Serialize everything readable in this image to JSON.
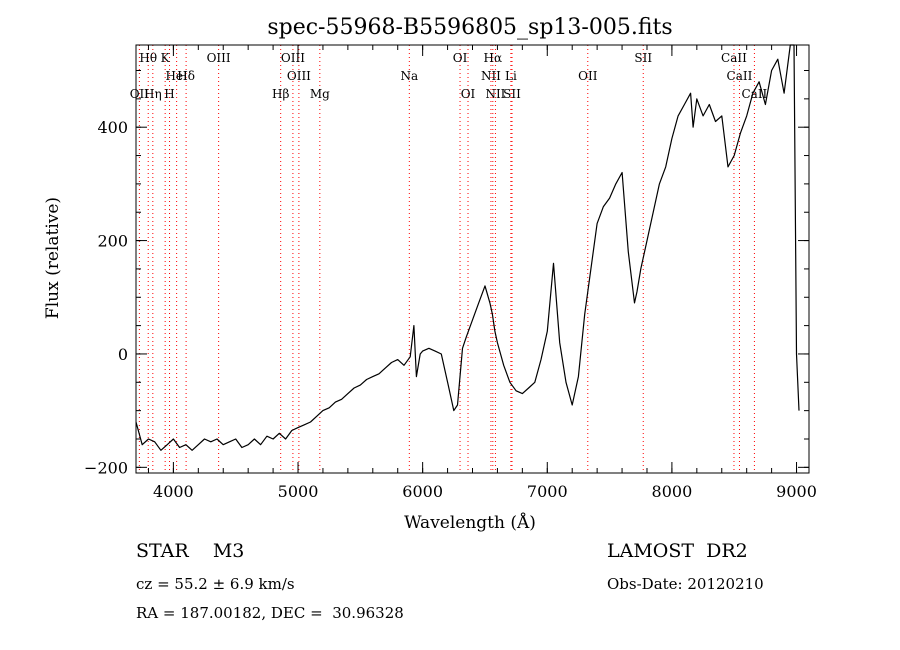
{
  "chart_data": {
    "type": "line",
    "title": "spec-55968-B5596805_sp13-005.fits",
    "xlabel": "Wavelength (Å)",
    "ylabel": "Flux (relative)",
    "xlim": [
      3700,
      9100
    ],
    "ylim": [
      -210,
      545
    ],
    "xticks": [
      4000,
      5000,
      6000,
      7000,
      8000,
      9000
    ],
    "yticks": [
      -200,
      0,
      200,
      400
    ],
    "minor_xtick_step": 200,
    "minor_ytick_step": 50,
    "line_color": "#000000",
    "marker_color": "#ff0000",
    "series": [
      {
        "x": [
          3700,
          3750,
          3800,
          3850,
          3900,
          3950,
          4000,
          4050,
          4100,
          4150,
          4200,
          4250,
          4300,
          4350,
          4400,
          4450,
          4500,
          4550,
          4600,
          4650,
          4700,
          4750,
          4800,
          4850,
          4900,
          4950,
          5000,
          5050,
          5100,
          5150,
          5200,
          5250,
          5300,
          5350,
          5400,
          5450,
          5500,
          5550,
          5600,
          5650,
          5700,
          5750,
          5800,
          5850,
          5900,
          5930,
          5950,
          5980,
          6000,
          6050,
          6100,
          6150,
          6200,
          6250,
          6280,
          6300,
          6320,
          6350,
          6400,
          6450,
          6500,
          6540,
          6560,
          6580,
          6600,
          6650,
          6700,
          6750,
          6800,
          6850,
          6900,
          6950,
          7000,
          7050,
          7100,
          7150,
          7200,
          7250,
          7300,
          7350,
          7400,
          7450,
          7500,
          7550,
          7600,
          7650,
          7700,
          7720,
          7750,
          7800,
          7850,
          7900,
          7950,
          8000,
          8050,
          8100,
          8150,
          8170,
          8200,
          8250,
          8300,
          8350,
          8400,
          8450,
          8500,
          8550,
          8600,
          8650,
          8700,
          8750,
          8800,
          8850,
          8900,
          8950,
          8980,
          9000,
          9020
        ],
        "y": [
          -120,
          -160,
          -150,
          -155,
          -170,
          -160,
          -150,
          -165,
          -160,
          -170,
          -160,
          -150,
          -155,
          -150,
          -160,
          -155,
          -150,
          -165,
          -160,
          -150,
          -160,
          -145,
          -150,
          -140,
          -150,
          -135,
          -130,
          -125,
          -120,
          -110,
          -100,
          -95,
          -85,
          -80,
          -70,
          -60,
          -55,
          -45,
          -40,
          -35,
          -25,
          -15,
          -10,
          -20,
          -5,
          50,
          -40,
          0,
          5,
          10,
          5,
          0,
          -50,
          -100,
          -90,
          -40,
          10,
          30,
          60,
          90,
          120,
          90,
          70,
          40,
          20,
          -20,
          -50,
          -65,
          -70,
          -60,
          -50,
          -10,
          40,
          160,
          20,
          -50,
          -90,
          -40,
          70,
          150,
          230,
          260,
          275,
          300,
          320,
          180,
          90,
          110,
          150,
          200,
          250,
          300,
          330,
          380,
          420,
          440,
          460,
          400,
          450,
          420,
          440,
          410,
          420,
          330,
          350,
          390,
          420,
          460,
          480,
          440,
          500,
          520,
          460,
          545,
          545,
          0,
          -100
        ]
      }
    ],
    "line_markers": [
      {
        "label": "Hθ",
        "x": 3798,
        "row": 1
      },
      {
        "label": "K",
        "x": 3934,
        "row": 1
      },
      {
        "label": "HeI",
        "x": 4026,
        "row": 2
      },
      {
        "label": "Hδ",
        "x": 4102,
        "row": 2
      },
      {
        "label": "OII",
        "x": 3727,
        "row": 3
      },
      {
        "label": "Hη",
        "x": 3835,
        "row": 3
      },
      {
        "label": "H",
        "x": 3969,
        "row": 3
      },
      {
        "label": "OIII",
        "x": 4363,
        "row": 1
      },
      {
        "label": "OIII",
        "x": 4959,
        "row": 1
      },
      {
        "label": "OIII",
        "x": 5007,
        "row": 2
      },
      {
        "label": "Hβ",
        "x": 4861,
        "row": 3
      },
      {
        "label": "Mg",
        "x": 5175,
        "row": 3
      },
      {
        "label": "Na",
        "x": 5893,
        "row": 2
      },
      {
        "label": "OI",
        "x": 6300,
        "row": 1
      },
      {
        "label": "OI",
        "x": 6364,
        "row": 3
      },
      {
        "label": "Hα",
        "x": 6563,
        "row": 1
      },
      {
        "label": "NII",
        "x": 6548,
        "row": 2
      },
      {
        "label": "Li",
        "x": 6708,
        "row": 2
      },
      {
        "label": "NII",
        "x": 6584,
        "row": 3
      },
      {
        "label": "SII",
        "x": 6717,
        "row": 3
      },
      {
        "label": "OII",
        "x": 7325,
        "row": 2
      },
      {
        "label": "SII",
        "x": 7770,
        "row": 1
      },
      {
        "label": "CaII",
        "x": 8498,
        "row": 1
      },
      {
        "label": "CaII",
        "x": 8542,
        "row": 2
      },
      {
        "label": "CaII",
        "x": 8662,
        "row": 3
      }
    ]
  },
  "info": {
    "object": "STAR    M3",
    "survey": "LAMOST  DR2",
    "cz": "cz = 55.2 ± 6.9 km/s",
    "obs_date": "Obs-Date: 20120210",
    "coords": "RA = 187.00182, DEC =  30.96328"
  }
}
